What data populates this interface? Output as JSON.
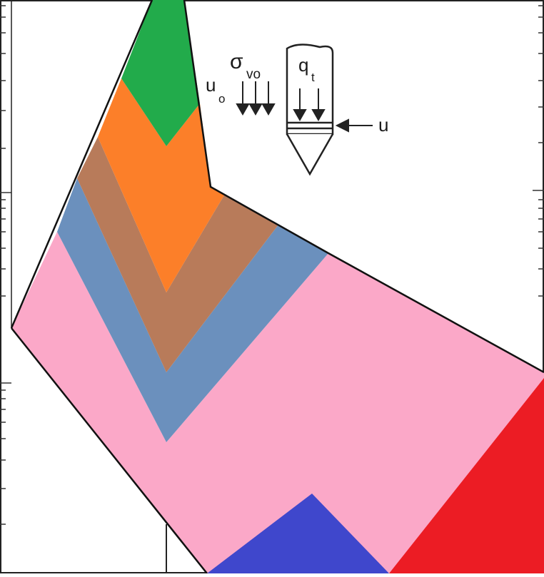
{
  "diagram": {
    "zones": [
      {
        "id": "zone-green",
        "color": "#22ab4b"
      },
      {
        "id": "zone-orange",
        "color": "#fc7f29"
      },
      {
        "id": "zone-brown",
        "color": "#b87b5a"
      },
      {
        "id": "zone-steel-blue",
        "color": "#6b90bd"
      },
      {
        "id": "zone-pink",
        "color": "#fba8c8"
      },
      {
        "id": "zone-blue",
        "color": "#3f47cc"
      },
      {
        "id": "zone-red",
        "color": "#ec1c24"
      }
    ],
    "outline_color": "#111111",
    "inset": {
      "u0_label": "u",
      "u0_subscript": "o",
      "sigma_label": "σ",
      "sigma_subscript": "vo",
      "qt_label": "q",
      "qt_subscript": "t",
      "u_label": "u"
    }
  }
}
